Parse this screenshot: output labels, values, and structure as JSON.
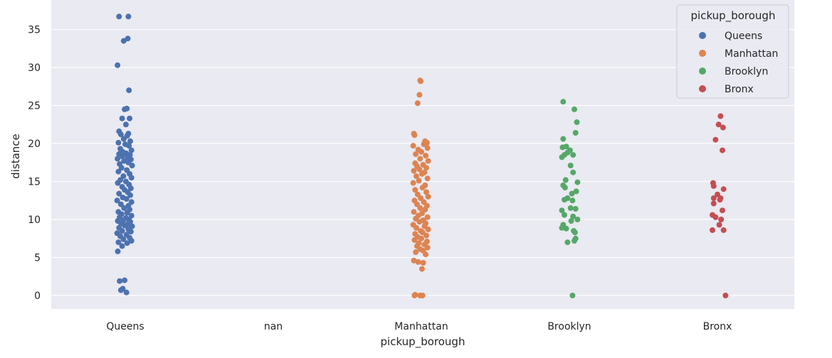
{
  "chart_data": {
    "type": "scatter",
    "subtype": "strip",
    "xlabel": "pickup_borough",
    "ylabel": "distance",
    "categories": [
      "Queens",
      "nan",
      "Manhattan",
      "Brooklyn",
      "Bronx"
    ],
    "yticks": [
      "0",
      "5",
      "10",
      "15",
      "20",
      "25",
      "30",
      "35"
    ],
    "ylim": [
      -1.7,
      38.0
    ],
    "grid": true,
    "legend": {
      "title": "pickup_borough",
      "placement": "top-right",
      "entries": [
        {
          "name": "Queens",
          "color": "#4c72b0"
        },
        {
          "name": "Manhattan",
          "color": "#dd8452"
        },
        {
          "name": "Brooklyn",
          "color": "#55a868"
        },
        {
          "name": "Bronx",
          "color": "#c44e52"
        }
      ]
    },
    "series": [
      {
        "category": "Queens",
        "color": "#4c72b0",
        "points": [
          [
            -0.2,
            36.7
          ],
          [
            0.1,
            36.7
          ],
          [
            -0.05,
            33.5
          ],
          [
            0.08,
            33.8
          ],
          [
            -0.25,
            30.3
          ],
          [
            0.12,
            27.0
          ],
          [
            -0.02,
            24.5
          ],
          [
            0.05,
            24.6
          ],
          [
            -0.1,
            23.3
          ],
          [
            0.14,
            23.3
          ],
          [
            0.02,
            22.5
          ],
          [
            -0.2,
            21.6
          ],
          [
            0.1,
            21.3
          ],
          [
            -0.14,
            21.2
          ],
          [
            0.06,
            21.0
          ],
          [
            -0.05,
            20.6
          ],
          [
            0.16,
            20.3
          ],
          [
            -0.22,
            20.1
          ],
          [
            0.0,
            19.9
          ],
          [
            0.12,
            19.7
          ],
          [
            -0.16,
            19.3
          ],
          [
            0.2,
            19.1
          ],
          [
            -0.08,
            18.9
          ],
          [
            0.03,
            18.7
          ],
          [
            -0.2,
            18.6
          ],
          [
            0.15,
            18.5
          ],
          [
            -0.1,
            18.3
          ],
          [
            0.08,
            18.2
          ],
          [
            -0.25,
            18.0
          ],
          [
            0.18,
            17.9
          ],
          [
            -0.04,
            17.7
          ],
          [
            0.1,
            17.5
          ],
          [
            -0.18,
            17.3
          ],
          [
            0.22,
            17.1
          ],
          [
            -0.12,
            16.8
          ],
          [
            0.05,
            16.5
          ],
          [
            -0.22,
            16.3
          ],
          [
            0.14,
            16.0
          ],
          [
            -0.06,
            15.7
          ],
          [
            0.2,
            15.5
          ],
          [
            -0.16,
            15.2
          ],
          [
            0.02,
            15.0
          ],
          [
            -0.24,
            14.8
          ],
          [
            0.12,
            14.6
          ],
          [
            -0.1,
            14.3
          ],
          [
            0.18,
            14.1
          ],
          [
            -0.02,
            13.9
          ],
          [
            0.08,
            13.6
          ],
          [
            -0.2,
            13.4
          ],
          [
            0.16,
            13.2
          ],
          [
            -0.08,
            12.9
          ],
          [
            0.04,
            12.7
          ],
          [
            -0.26,
            12.5
          ],
          [
            0.2,
            12.3
          ],
          [
            -0.14,
            12.0
          ],
          [
            0.1,
            11.8
          ],
          [
            -0.04,
            11.5
          ],
          [
            0.14,
            11.3
          ],
          [
            -0.22,
            11.0
          ],
          [
            0.06,
            10.9
          ],
          [
            -0.12,
            10.7
          ],
          [
            0.2,
            10.5
          ],
          [
            -0.18,
            10.3
          ],
          [
            0.02,
            10.2
          ],
          [
            0.12,
            10.0
          ],
          [
            -0.06,
            9.9
          ],
          [
            -0.24,
            9.8
          ],
          [
            0.16,
            9.7
          ],
          [
            -0.14,
            9.5
          ],
          [
            0.08,
            9.4
          ],
          [
            -0.02,
            9.2
          ],
          [
            0.22,
            9.1
          ],
          [
            -0.2,
            8.9
          ],
          [
            0.1,
            8.7
          ],
          [
            -0.1,
            8.5
          ],
          [
            0.18,
            8.4
          ],
          [
            -0.26,
            8.2
          ],
          [
            0.04,
            8.0
          ],
          [
            -0.16,
            7.8
          ],
          [
            0.14,
            7.6
          ],
          [
            -0.06,
            7.4
          ],
          [
            0.2,
            7.2
          ],
          [
            -0.22,
            7.0
          ],
          [
            0.06,
            6.9
          ],
          [
            -0.1,
            6.5
          ],
          [
            -0.24,
            5.8
          ],
          [
            -0.18,
            1.9
          ],
          [
            -0.02,
            2.0
          ],
          [
            -0.14,
            0.7
          ],
          [
            -0.08,
            0.9
          ],
          [
            0.04,
            0.4
          ]
        ]
      },
      {
        "category": "Manhattan",
        "color": "#dd8452",
        "points": [
          [
            -0.04,
            28.3
          ],
          [
            -0.02,
            28.2
          ],
          [
            -0.06,
            26.4
          ],
          [
            -0.12,
            25.3
          ],
          [
            -0.24,
            21.3
          ],
          [
            -0.22,
            21.1
          ],
          [
            0.12,
            20.3
          ],
          [
            0.18,
            20.1
          ],
          [
            0.08,
            19.9
          ],
          [
            -0.26,
            19.7
          ],
          [
            0.2,
            19.4
          ],
          [
            -0.1,
            19.2
          ],
          [
            0.0,
            18.9
          ],
          [
            -0.18,
            18.6
          ],
          [
            0.14,
            18.4
          ],
          [
            -0.04,
            18.0
          ],
          [
            0.22,
            17.7
          ],
          [
            -0.2,
            17.4
          ],
          [
            0.06,
            17.2
          ],
          [
            -0.14,
            17.0
          ],
          [
            0.16,
            16.8
          ],
          [
            -0.06,
            16.6
          ],
          [
            -0.24,
            16.4
          ],
          [
            0.1,
            16.2
          ],
          [
            0.02,
            16.0
          ],
          [
            -0.16,
            15.7
          ],
          [
            0.2,
            15.4
          ],
          [
            -0.08,
            15.1
          ],
          [
            -0.26,
            14.8
          ],
          [
            0.12,
            14.5
          ],
          [
            0.04,
            14.2
          ],
          [
            -0.2,
            13.9
          ],
          [
            0.16,
            13.6
          ],
          [
            -0.12,
            13.3
          ],
          [
            0.22,
            13.0
          ],
          [
            -0.02,
            12.8
          ],
          [
            -0.22,
            12.5
          ],
          [
            0.08,
            12.3
          ],
          [
            -0.14,
            12.0
          ],
          [
            0.18,
            11.8
          ],
          [
            -0.04,
            11.5
          ],
          [
            0.12,
            11.3
          ],
          [
            -0.24,
            11.0
          ],
          [
            0.02,
            10.8
          ],
          [
            -0.1,
            10.5
          ],
          [
            0.2,
            10.3
          ],
          [
            -0.18,
            10.1
          ],
          [
            0.06,
            9.9
          ],
          [
            -0.06,
            9.7
          ],
          [
            0.14,
            9.5
          ],
          [
            -0.26,
            9.3
          ],
          [
            0.1,
            9.1
          ],
          [
            -0.16,
            8.9
          ],
          [
            0.22,
            8.7
          ],
          [
            -0.02,
            8.5
          ],
          [
            0.04,
            8.3
          ],
          [
            -0.2,
            8.1
          ],
          [
            0.16,
            7.9
          ],
          [
            -0.12,
            7.7
          ],
          [
            0.0,
            7.5
          ],
          [
            -0.22,
            7.3
          ],
          [
            0.18,
            7.1
          ],
          [
            -0.08,
            6.9
          ],
          [
            0.1,
            6.7
          ],
          [
            -0.14,
            6.5
          ],
          [
            0.2,
            6.3
          ],
          [
            -0.04,
            6.1
          ],
          [
            0.06,
            5.9
          ],
          [
            -0.18,
            5.7
          ],
          [
            0.14,
            5.4
          ],
          [
            -0.24,
            4.6
          ],
          [
            -0.1,
            4.4
          ],
          [
            0.02,
            3.5
          ],
          [
            0.06,
            4.3
          ],
          [
            -0.22,
            0.0
          ],
          [
            -0.2,
            0.1
          ],
          [
            -0.04,
            0.0
          ],
          [
            0.04,
            0.0
          ]
        ]
      },
      {
        "category": "Brooklyn",
        "color": "#55a868",
        "points": [
          [
            -0.2,
            25.5
          ],
          [
            0.16,
            24.5
          ],
          [
            0.24,
            22.8
          ],
          [
            0.2,
            21.4
          ],
          [
            -0.2,
            20.6
          ],
          [
            -0.1,
            19.6
          ],
          [
            -0.22,
            19.5
          ],
          [
            0.02,
            19.1
          ],
          [
            0.12,
            18.5
          ],
          [
            -0.06,
            18.8
          ],
          [
            -0.16,
            18.5
          ],
          [
            -0.24,
            18.2
          ],
          [
            0.04,
            17.1
          ],
          [
            0.12,
            16.2
          ],
          [
            -0.12,
            15.2
          ],
          [
            0.26,
            14.9
          ],
          [
            -0.2,
            14.5
          ],
          [
            -0.14,
            14.2
          ],
          [
            0.08,
            13.4
          ],
          [
            0.22,
            13.7
          ],
          [
            -0.16,
            12.6
          ],
          [
            -0.06,
            12.8
          ],
          [
            0.1,
            12.5
          ],
          [
            -0.24,
            11.2
          ],
          [
            0.2,
            11.4
          ],
          [
            0.04,
            11.5
          ],
          [
            -0.16,
            10.6
          ],
          [
            0.12,
            10.4
          ],
          [
            0.26,
            10.0
          ],
          [
            0.06,
            9.8
          ],
          [
            -0.2,
            9.3
          ],
          [
            -0.1,
            8.8
          ],
          [
            -0.24,
            8.9
          ],
          [
            0.14,
            8.5
          ],
          [
            0.18,
            8.3
          ],
          [
            0.2,
            7.5
          ],
          [
            -0.06,
            7.0
          ],
          [
            0.16,
            7.2
          ],
          [
            0.1,
            0.0
          ]
        ]
      },
      {
        "category": "Bronx",
        "color": "#c44e52",
        "points": [
          [
            0.1,
            23.6
          ],
          [
            0.04,
            22.5
          ],
          [
            0.18,
            22.1
          ],
          [
            -0.06,
            20.5
          ],
          [
            0.16,
            19.1
          ],
          [
            -0.14,
            14.8
          ],
          [
            -0.12,
            14.4
          ],
          [
            0.2,
            14.0
          ],
          [
            0.0,
            13.3
          ],
          [
            -0.12,
            12.8
          ],
          [
            0.1,
            12.8
          ],
          [
            0.08,
            12.6
          ],
          [
            -0.12,
            12.1
          ],
          [
            0.16,
            11.2
          ],
          [
            -0.16,
            10.6
          ],
          [
            -0.06,
            10.3
          ],
          [
            0.12,
            10.0
          ],
          [
            0.06,
            9.3
          ],
          [
            -0.16,
            8.6
          ],
          [
            0.2,
            8.6
          ],
          [
            0.26,
            0.0
          ]
        ]
      }
    ]
  }
}
